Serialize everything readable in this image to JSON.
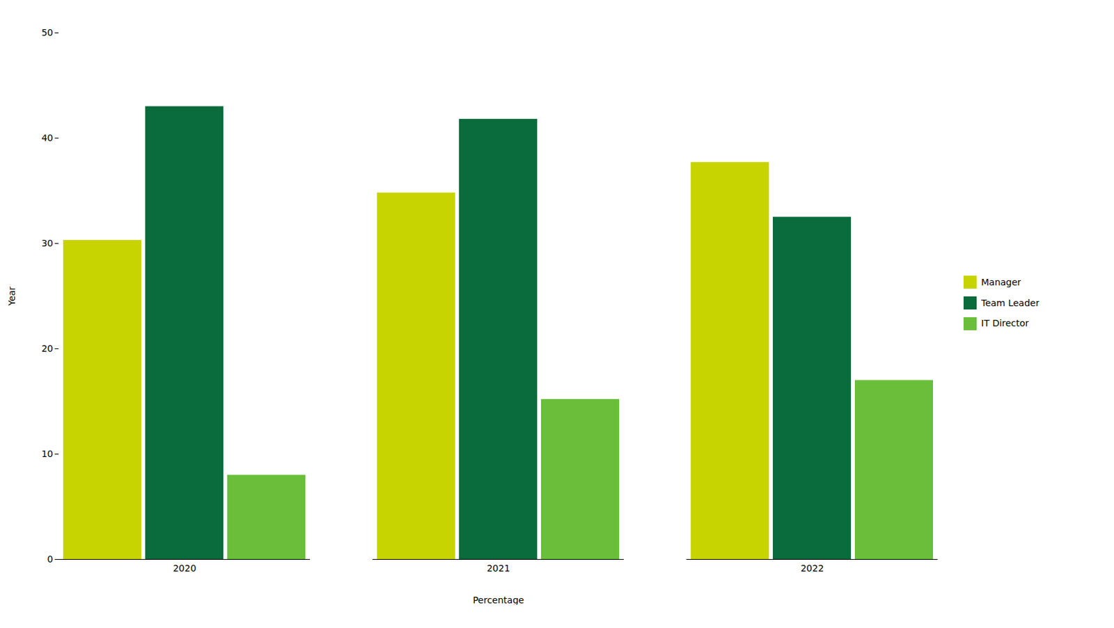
{
  "chart_data": {
    "type": "bar",
    "categories": [
      "2020",
      "2021",
      "2022"
    ],
    "series": [
      {
        "name": "Manager",
        "color": "#c8d400",
        "values": [
          30.3,
          34.8,
          37.7
        ]
      },
      {
        "name": "Team Leader",
        "color": "#0a6b3c",
        "values": [
          43.0,
          41.8,
          32.5
        ]
      },
      {
        "name": "IT Director",
        "color": "#6abf3a",
        "values": [
          8.0,
          15.2,
          17.0
        ]
      }
    ],
    "xlabel": "Percentage",
    "ylabel": "Year",
    "ylim": [
      0,
      50
    ],
    "yticks": [
      0,
      10,
      20,
      30,
      40,
      50
    ],
    "grid": false,
    "legend": "right"
  }
}
